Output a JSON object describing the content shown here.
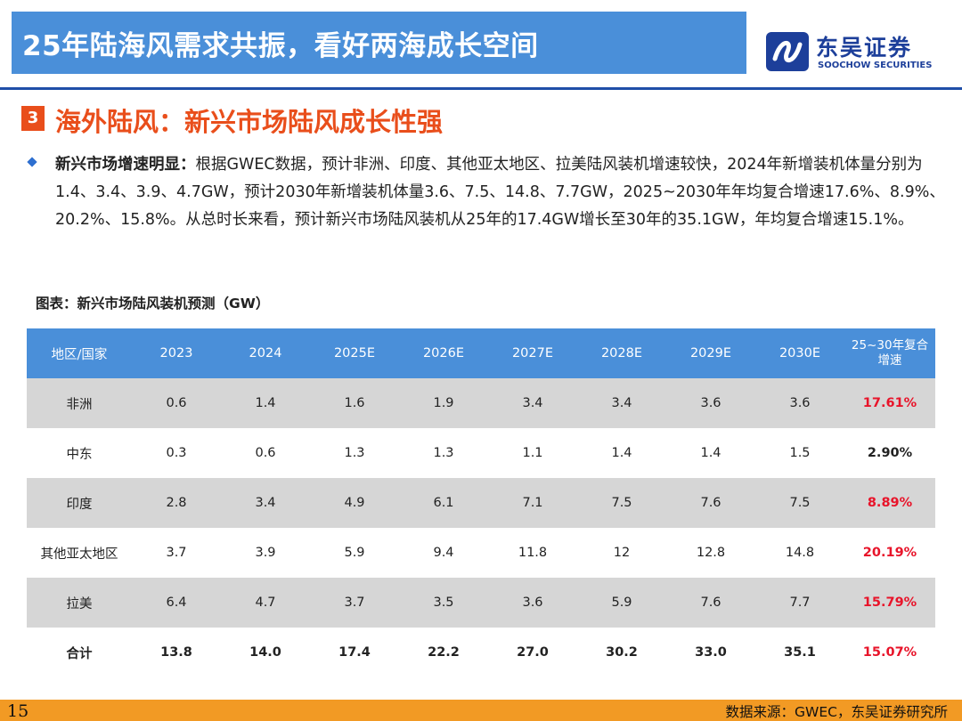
{
  "header": {
    "title": "25年陆海风需求共振，看好两海成长空间",
    "logo_cn": "东吴证券",
    "logo_en": "SOOCHOW SECURITIES",
    "colors": {
      "band": "#4a8fd9",
      "rule": "#1f4ea8",
      "logo": "#1d3f9a"
    }
  },
  "section": {
    "number": "3",
    "title": "海外陆风：新兴市场陆风成长性强",
    "color": "#e94e1b"
  },
  "paragraph": {
    "lead": "新兴市场增速明显：",
    "body": "根据GWEC数据，预计非洲、印度、其他亚太地区、拉美陆风装机增速较快，2024年新增装机体量分别为1.4、3.4、3.9、4.7GW，预计2030年新增装机体量3.6、7.5、14.8、7.7GW，2025~2030年年均复合增速17.6%、8.9%、20.2%、15.8%。从总时长来看，预计新兴市场陆风装机从25年的17.4GW增长至30年的35.1GW，年均复合增速15.1%。"
  },
  "table": {
    "caption": "图表：新兴市场陆风装机预测（GW）",
    "headers": [
      "地区/国家",
      "2023",
      "2024",
      "2025E",
      "2026E",
      "2027E",
      "2028E",
      "2029E",
      "2030E",
      "25~30年复合增速"
    ],
    "cagr_header_line1": "25~30年复合",
    "cagr_header_line2": "增速",
    "rows": [
      {
        "region": "非洲",
        "values": [
          "0.6",
          "1.4",
          "1.6",
          "1.9",
          "3.4",
          "3.4",
          "3.6",
          "3.6"
        ],
        "cagr": "17.61%",
        "cagr_style": "red",
        "shaded": true
      },
      {
        "region": "中东",
        "values": [
          "0.3",
          "0.6",
          "1.3",
          "1.3",
          "1.1",
          "1.4",
          "1.4",
          "1.5"
        ],
        "cagr": "2.90%",
        "cagr_style": "blk",
        "shaded": false
      },
      {
        "region": "印度",
        "values": [
          "2.8",
          "3.4",
          "4.9",
          "6.1",
          "7.1",
          "7.5",
          "7.6",
          "7.5"
        ],
        "cagr": "8.89%",
        "cagr_style": "red",
        "shaded": true
      },
      {
        "region": "其他亚太地区",
        "values": [
          "3.7",
          "3.9",
          "5.9",
          "9.4",
          "11.8",
          "12",
          "12.8",
          "14.8"
        ],
        "cagr": "20.19%",
        "cagr_style": "red",
        "shaded": false
      },
      {
        "region": "拉美",
        "values": [
          "6.4",
          "4.7",
          "3.7",
          "3.5",
          "3.6",
          "5.9",
          "7.6",
          "7.7"
        ],
        "cagr": "15.79%",
        "cagr_style": "red",
        "shaded": true
      },
      {
        "region": "合计",
        "values": [
          "13.8",
          "14.0",
          "17.4",
          "22.2",
          "27.0",
          "30.2",
          "33.0",
          "35.1"
        ],
        "cagr": "15.07%",
        "cagr_style": "red",
        "shaded": false,
        "total": true
      }
    ]
  },
  "footer": {
    "page": "15",
    "source": "数据来源：GWEC，东吴证券研究所",
    "color": "#f29a24"
  }
}
